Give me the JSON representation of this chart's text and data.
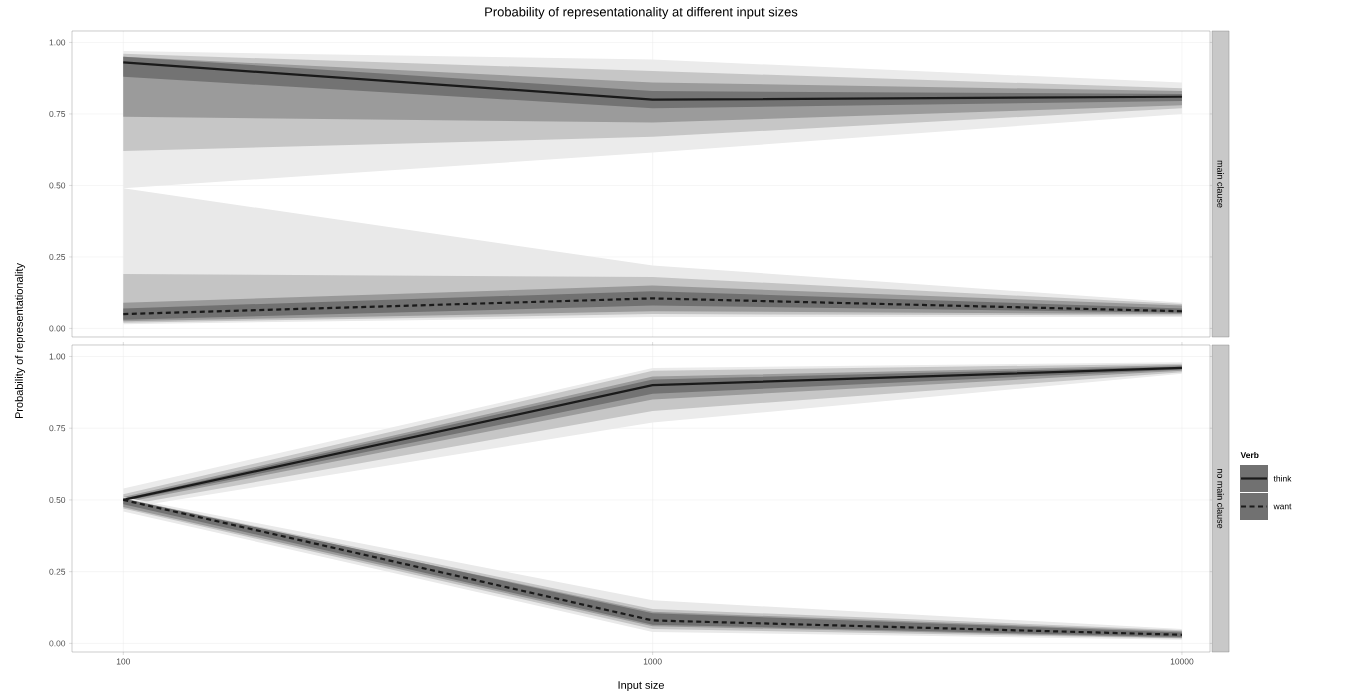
{
  "chart_data": [
    {
      "type": "line",
      "title": "Probability of representationality at different input sizes",
      "annotations": [
        "main clause"
      ],
      "ylabel": "Probability of representationality",
      "x": [
        100,
        1000,
        10000
      ],
      "log": "x",
      "xlim": [
        80,
        11300
      ],
      "xticks": [
        100,
        1000,
        10000
      ],
      "ylim": [
        -0.03,
        1.04
      ],
      "yticks": [
        {
          "value": 0,
          "label": "0.00"
        },
        {
          "value": 0.25,
          "label": "0.25"
        },
        {
          "value": 0.5,
          "label": "0.50"
        },
        {
          "value": 0.75,
          "label": "0.75"
        },
        {
          "value": 1,
          "label": "1.00"
        }
      ],
      "grid": true,
      "tick_labels": "y",
      "series": [
        {
          "color": "#ebebeb",
          "values": [
            null,
            null,
            null
          ],
          "lower": [
            0.49,
            0.615,
            0.75
          ],
          "upper": [
            0.97,
            0.94,
            0.86
          ]
        },
        {
          "color": "#c6c6c6",
          "values": [
            null,
            null,
            null
          ],
          "lower": [
            0.62,
            0.67,
            0.77
          ],
          "upper": [
            0.96,
            0.9,
            0.84
          ]
        },
        {
          "color": "#9b9b9b",
          "values": [
            null,
            null,
            null
          ],
          "lower": [
            0.74,
            0.72,
            0.78
          ],
          "upper": [
            0.95,
            0.86,
            0.83
          ]
        },
        {
          "color": "#737373",
          "values": [
            null,
            null,
            null
          ],
          "lower": [
            0.88,
            0.77,
            0.795
          ],
          "upper": [
            0.95,
            0.83,
            0.82
          ]
        },
        {
          "color": "#e9e9e9",
          "values": [
            null,
            null,
            null
          ],
          "lower": [
            0.015,
            0.04,
            0.04
          ],
          "upper": [
            0.49,
            0.22,
            0.09
          ]
        },
        {
          "color": "#c4c4c4",
          "values": [
            null,
            null,
            null
          ],
          "lower": [
            0.02,
            0.05,
            0.045
          ],
          "upper": [
            0.19,
            0.18,
            0.085
          ]
        },
        {
          "color": "#999999",
          "values": [
            null,
            null,
            null
          ],
          "lower": [
            0.025,
            0.06,
            0.05
          ],
          "upper": [
            0.09,
            0.15,
            0.08
          ]
        },
        {
          "color": "#717171",
          "values": [
            null,
            null,
            null
          ],
          "lower": [
            0.03,
            0.08,
            0.055
          ],
          "upper": [
            0.07,
            0.13,
            0.07
          ]
        },
        {
          "color": "#1a1a1a",
          "line_style": "solid",
          "values": [
            0.93,
            0.8,
            0.81
          ]
        },
        {
          "color": "#1a1a1a",
          "line_style": "dashed",
          "values": [
            0.05,
            0.105,
            0.06
          ]
        }
      ]
    },
    {
      "type": "line",
      "annotations": [
        "no main clause"
      ],
      "xlabel": "Input size",
      "legend_title": "Verb",
      "legend": "right",
      "x": [
        100,
        1000,
        10000
      ],
      "log": "x",
      "xlim": [
        80,
        11300
      ],
      "xticks": [
        100,
        1000,
        10000
      ],
      "ylim": [
        -0.03,
        1.04
      ],
      "yticks": [
        {
          "value": 0,
          "label": "0.00"
        },
        {
          "value": 0.25,
          "label": "0.25"
        },
        {
          "value": 0.5,
          "label": "0.50"
        },
        {
          "value": 0.75,
          "label": "0.75"
        },
        {
          "value": 1,
          "label": "1.00"
        }
      ],
      "grid": true,
      "series": [
        {
          "color": "#ebebeb",
          "values": [
            null,
            null,
            null
          ],
          "lower": [
            0.47,
            0.77,
            0.94
          ],
          "upper": [
            0.54,
            0.96,
            0.98
          ]
        },
        {
          "color": "#c6c6c6",
          "values": [
            null,
            null,
            null
          ],
          "lower": [
            0.48,
            0.81,
            0.945
          ],
          "upper": [
            0.52,
            0.95,
            0.975
          ]
        },
        {
          "color": "#9b9b9b",
          "values": [
            null,
            null,
            null
          ],
          "lower": [
            0.49,
            0.85,
            0.95
          ],
          "upper": [
            0.51,
            0.93,
            0.97
          ]
        },
        {
          "color": "#737373",
          "values": [
            null,
            null,
            null
          ],
          "lower": [
            0.495,
            0.87,
            0.955
          ],
          "upper": [
            0.505,
            0.92,
            0.965
          ]
        },
        {
          "color": "#e9e9e9",
          "values": [
            null,
            null,
            null
          ],
          "lower": [
            0.46,
            0.04,
            0.013
          ],
          "upper": [
            0.51,
            0.15,
            0.05
          ]
        },
        {
          "color": "#c4c4c4",
          "values": [
            null,
            null,
            null
          ],
          "lower": [
            0.47,
            0.05,
            0.017
          ],
          "upper": [
            0.505,
            0.12,
            0.046
          ]
        },
        {
          "color": "#999999",
          "values": [
            null,
            null,
            null
          ],
          "lower": [
            0.475,
            0.06,
            0.019
          ],
          "upper": [
            0.5,
            0.11,
            0.042
          ]
        },
        {
          "color": "#717171",
          "values": [
            null,
            null,
            null
          ],
          "lower": [
            0.485,
            0.065,
            0.022
          ],
          "upper": [
            0.505,
            0.105,
            0.038
          ]
        },
        {
          "name": "think",
          "color": "#1a1a1a",
          "line_style": "solid",
          "values": [
            0.5,
            0.9,
            0.96
          ]
        },
        {
          "name": "want",
          "color": "#1a1a1a",
          "line_style": "dashed",
          "values": [
            0.5,
            0.08,
            0.03
          ]
        }
      ]
    }
  ]
}
